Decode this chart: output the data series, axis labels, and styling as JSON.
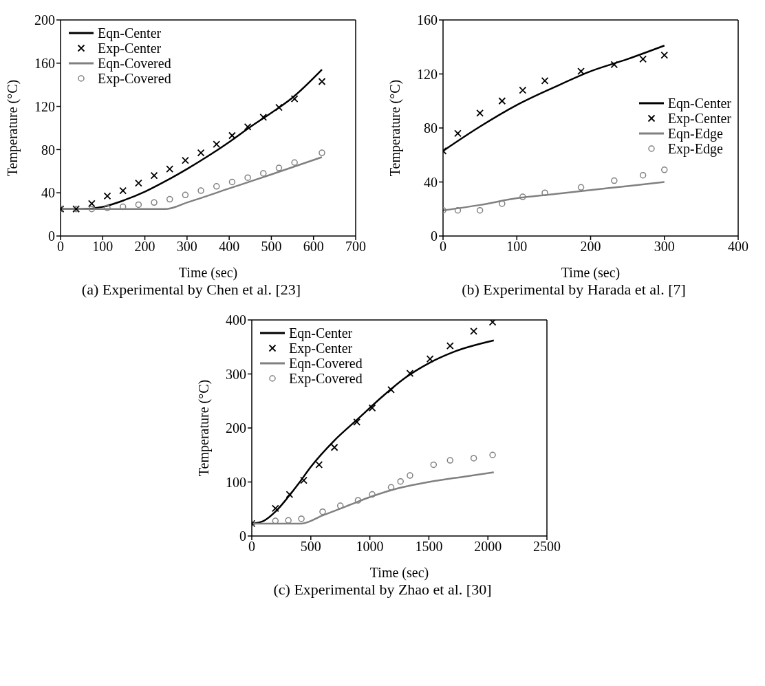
{
  "chart_data": [
    {
      "type": "line",
      "title": "(a) Experimental by Chen et al. [23]",
      "xlabel": "Time (sec)",
      "ylabel": "Temperature (°C)",
      "xlim": [
        0,
        700
      ],
      "xticks": [
        0,
        100,
        200,
        300,
        400,
        500,
        600,
        700
      ],
      "ylim": [
        0,
        200
      ],
      "yticks": [
        0,
        40,
        80,
        120,
        160,
        200
      ],
      "legend": "top left",
      "grid": false,
      "series": [
        {
          "name": "Eqn-Center",
          "type": "line",
          "color": "#000000",
          "marker": "none",
          "x": [
            0,
            50,
            100,
            150,
            200,
            250,
            300,
            350,
            400,
            450,
            500,
            550,
            620
          ],
          "values": [
            25,
            25,
            27,
            33,
            41,
            51,
            62,
            74,
            87,
            101,
            114,
            128,
            154
          ]
        },
        {
          "name": "Exp-Center",
          "type": "scatter",
          "color": "#000000",
          "marker": "cross",
          "x": [
            0,
            37,
            74,
            111,
            148,
            185,
            222,
            259,
            296,
            333,
            370,
            407,
            444,
            481,
            518,
            555,
            620
          ],
          "values": [
            25,
            25,
            30,
            37,
            42,
            49,
            56,
            62,
            70,
            77,
            85,
            93,
            101,
            110,
            119,
            127,
            143
          ]
        },
        {
          "name": "Eqn-Covered",
          "type": "line",
          "color": "#808080",
          "marker": "none",
          "x": [
            0,
            250,
            300,
            400,
            500,
            620
          ],
          "values": [
            25,
            25,
            31,
            44,
            57,
            73
          ]
        },
        {
          "name": "Exp-Covered",
          "type": "scatter",
          "color": "#808080",
          "marker": "circle",
          "x": [
            0,
            37,
            74,
            111,
            148,
            185,
            222,
            259,
            296,
            333,
            370,
            407,
            444,
            481,
            518,
            555,
            620
          ],
          "values": [
            25,
            25,
            25,
            26,
            27,
            29,
            31,
            34,
            38,
            42,
            46,
            50,
            54,
            58,
            63,
            68,
            77
          ]
        }
      ]
    },
    {
      "type": "line",
      "title": "(b) Experimental by Harada et al. [7]",
      "xlabel": "Time (sec)",
      "ylabel": "Temperature (°C)",
      "xlim": [
        0,
        400
      ],
      "xticks": [
        0,
        100,
        200,
        300,
        400
      ],
      "ylim": [
        0,
        160
      ],
      "yticks": [
        0,
        40,
        80,
        120,
        160
      ],
      "legend": "right",
      "grid": false,
      "series": [
        {
          "name": "Eqn-Center",
          "type": "line",
          "color": "#000000",
          "marker": "none",
          "x": [
            0,
            50,
            100,
            150,
            200,
            250,
            300
          ],
          "values": [
            63,
            81,
            97,
            110,
            122,
            131,
            141
          ]
        },
        {
          "name": "Exp-Center",
          "type": "scatter",
          "color": "#000000",
          "marker": "cross",
          "x": [
            0,
            20,
            50,
            80,
            108,
            138,
            187,
            232,
            271,
            300
          ],
          "values": [
            63,
            76,
            91,
            100,
            108,
            115,
            122,
            127,
            131,
            134
          ]
        },
        {
          "name": "Eqn-Edge",
          "type": "line",
          "color": "#808080",
          "marker": "none",
          "x": [
            0,
            50,
            100,
            150,
            200,
            250,
            300
          ],
          "values": [
            19,
            23,
            28,
            31,
            34,
            37,
            40
          ]
        },
        {
          "name": "Exp-Edge",
          "type": "scatter",
          "color": "#808080",
          "marker": "circle",
          "x": [
            0,
            20,
            50,
            80,
            108,
            138,
            187,
            232,
            271,
            300
          ],
          "values": [
            19,
            19,
            19,
            24,
            29,
            32,
            36,
            41,
            45,
            49
          ]
        }
      ]
    },
    {
      "type": "line",
      "title": "(c) Experimental by Zhao et al. [30]",
      "xlabel": "Time (sec)",
      "ylabel": "Temperature (°C)",
      "xlim": [
        0,
        2500
      ],
      "xticks": [
        0,
        500,
        1000,
        1500,
        2000,
        2500
      ],
      "ylim": [
        0,
        400
      ],
      "yticks": [
        0,
        100,
        200,
        300,
        400
      ],
      "legend": "top left",
      "grid": false,
      "series": [
        {
          "name": "Eqn-Center",
          "type": "line",
          "color": "#000000",
          "marker": "none",
          "x": [
            0,
            100,
            200,
            300,
            400,
            500,
            700,
            900,
            1100,
            1300,
            1500,
            1700,
            2050
          ],
          "values": [
            23,
            28,
            45,
            70,
            98,
            128,
            177,
            217,
            257,
            293,
            320,
            340,
            362
          ]
        },
        {
          "name": "Exp-Center",
          "type": "scatter",
          "color": "#000000",
          "marker": "cross",
          "x": [
            0,
            200,
            320,
            440,
            570,
            700,
            890,
            1020,
            1180,
            1340,
            1510,
            1680,
            1880,
            2040
          ],
          "values": [
            23,
            51,
            77,
            103,
            132,
            164,
            211,
            237,
            271,
            301,
            328,
            352,
            379,
            396
          ]
        },
        {
          "name": "Eqn-Covered",
          "type": "line",
          "color": "#808080",
          "marker": "none",
          "x": [
            0,
            420,
            600,
            800,
            1000,
            1200,
            1500,
            1800,
            2050
          ],
          "values": [
            23,
            23,
            38,
            55,
            72,
            86,
            100,
            110,
            118
          ]
        },
        {
          "name": "Exp-Covered",
          "type": "scatter",
          "color": "#808080",
          "marker": "circle",
          "x": [
            0,
            200,
            310,
            420,
            600,
            750,
            900,
            1020,
            1180,
            1260,
            1340,
            1540,
            1680,
            1880,
            2040
          ],
          "values": [
            23,
            28,
            29,
            32,
            45,
            56,
            66,
            77,
            90,
            101,
            112,
            132,
            140,
            144,
            150
          ]
        }
      ]
    }
  ]
}
